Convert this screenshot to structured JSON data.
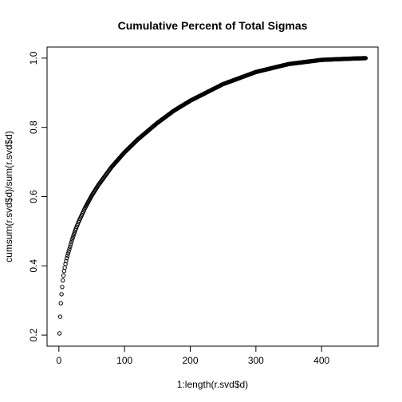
{
  "chart_data": {
    "type": "scatter",
    "title": "Cumulative Percent of Total Sigmas",
    "xlabel": "1:length(r.svd$d)",
    "ylabel": "cumsum(r.svd$d)/sum(r.svd$d)",
    "xlim": [
      -18,
      486
    ],
    "ylim": [
      0.168,
      1.032
    ],
    "x_ticks": [
      0,
      100,
      200,
      300,
      400
    ],
    "x_tick_labels": [
      "0",
      "100",
      "200",
      "300",
      "400"
    ],
    "y_ticks": [
      0.2,
      0.4,
      0.6,
      0.8,
      1.0
    ],
    "y_tick_labels": [
      "0.2",
      "0.4",
      "0.6",
      "0.8",
      "1.0"
    ],
    "n_points": 467,
    "grid": false,
    "legend": "none",
    "marker": "open-circle",
    "color": "#000000",
    "series": [
      {
        "x": [
          1,
          2,
          3,
          4,
          5,
          6,
          7,
          8,
          10,
          12,
          15,
          20,
          25,
          30,
          40,
          50,
          60,
          80,
          100,
          120,
          150,
          175,
          200,
          250,
          300,
          350,
          400,
          450,
          467
        ],
        "y": [
          0.205,
          0.253,
          0.292,
          0.318,
          0.339,
          0.358,
          0.372,
          0.385,
          0.405,
          0.422,
          0.442,
          0.475,
          0.503,
          0.527,
          0.568,
          0.603,
          0.633,
          0.685,
          0.728,
          0.765,
          0.813,
          0.848,
          0.877,
          0.925,
          0.96,
          0.983,
          0.995,
          0.999,
          1.0
        ]
      }
    ]
  }
}
